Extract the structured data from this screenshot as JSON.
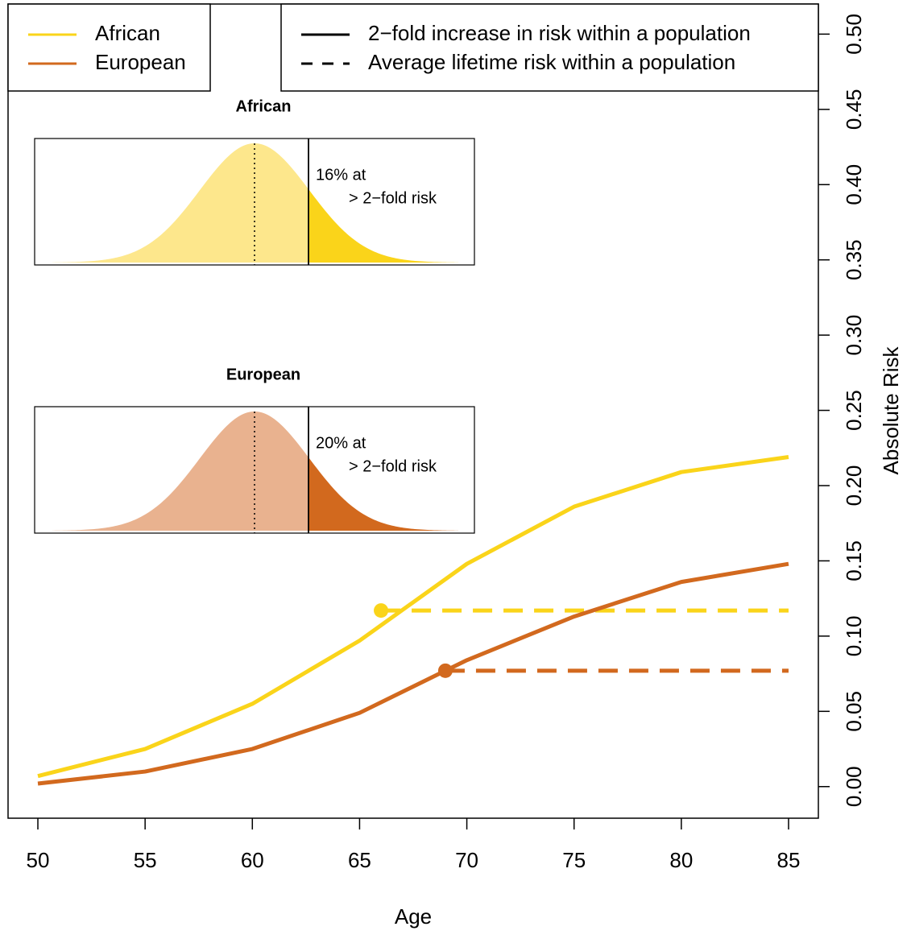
{
  "chart_data": {
    "type": "line",
    "x": [
      50,
      55,
      60,
      65,
      70,
      75,
      80,
      85
    ],
    "xlabel": "Age",
    "ylabel": "Absolute Risk",
    "xlim": [
      48.61,
      86.39
    ],
    "ylim": [
      -0.021,
      0.52
    ],
    "xticks": [
      50,
      55,
      60,
      65,
      70,
      75,
      80,
      85
    ],
    "yticks": [
      {
        "value": 0,
        "label": "0.00"
      },
      {
        "value": 0.05,
        "label": "0.05"
      },
      {
        "value": 0.1,
        "label": "0.10"
      },
      {
        "value": 0.15,
        "label": "0.15"
      },
      {
        "value": 0.2,
        "label": "0.20"
      },
      {
        "value": 0.25,
        "label": "0.25"
      },
      {
        "value": 0.3,
        "label": "0.30"
      },
      {
        "value": 0.35,
        "label": "0.35"
      },
      {
        "value": 0.4,
        "label": "0.40"
      },
      {
        "value": 0.45,
        "label": "0.45"
      },
      {
        "value": 0.5,
        "label": "0.50"
      }
    ],
    "series": [
      {
        "name": "African",
        "color": "#fad41a",
        "light_color": "#fde78c",
        "values": [
          0.007,
          0.025,
          0.055,
          0.097,
          0.148,
          0.186,
          0.209,
          0.219
        ],
        "average_risk": {
          "age": 66,
          "risk": 0.117
        }
      },
      {
        "name": "European",
        "color": "#d2691e",
        "light_color": "#e9b28f",
        "values": [
          0.002,
          0.01,
          0.025,
          0.049,
          0.084,
          0.113,
          0.136,
          0.148
        ],
        "average_risk": {
          "age": 69,
          "risk": 0.077
        }
      }
    ],
    "line_styles": [
      {
        "label": "2−fold increase in risk within a population",
        "dash": "solid"
      },
      {
        "label": "Average lifetime risk within a population",
        "dash": "dashed"
      }
    ],
    "insets": [
      {
        "title": "African",
        "annotation": [
          "16% at",
          "> 2−fold risk"
        ]
      },
      {
        "title": "European",
        "annotation": [
          "20% at",
          "> 2−fold risk"
        ]
      }
    ]
  }
}
